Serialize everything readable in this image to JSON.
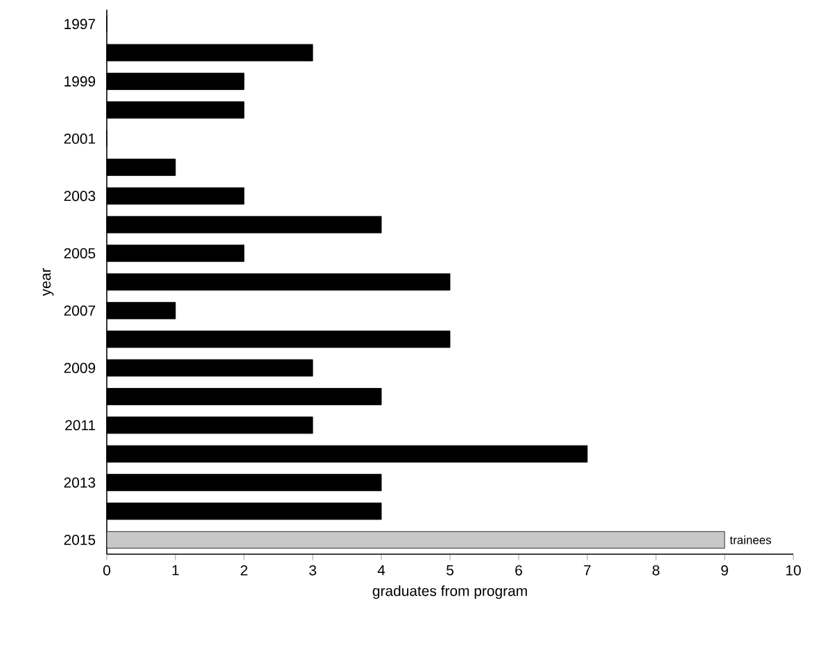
{
  "chart_data": {
    "type": "bar",
    "orientation": "horizontal",
    "xlabel": "graduates from program",
    "ylabel": "year",
    "categories": [
      "1997",
      null,
      "1999",
      null,
      "2001",
      null,
      "2003",
      null,
      "2005",
      null,
      "2007",
      null,
      "2009",
      null,
      "2011",
      null,
      "2013",
      null,
      "2015"
    ],
    "values": [
      0,
      3,
      2,
      2,
      0,
      1,
      2,
      4,
      2,
      5,
      1,
      5,
      3,
      4,
      3,
      7,
      4,
      4,
      9
    ],
    "colors": [
      "#000000",
      "#000000",
      "#000000",
      "#000000",
      "#000000",
      "#000000",
      "#000000",
      "#000000",
      "#000000",
      "#000000",
      "#000000",
      "#000000",
      "#000000",
      "#000000",
      "#000000",
      "#000000",
      "#000000",
      "#000000",
      "#c8c8c8"
    ],
    "xlim": [
      0,
      10
    ],
    "xticks": [
      0,
      1,
      2,
      3,
      4,
      5,
      6,
      7,
      8,
      9,
      10
    ],
    "grid": false,
    "annotations": [
      {
        "text": "trainees",
        "x": 9,
        "y": "2015"
      }
    ]
  }
}
